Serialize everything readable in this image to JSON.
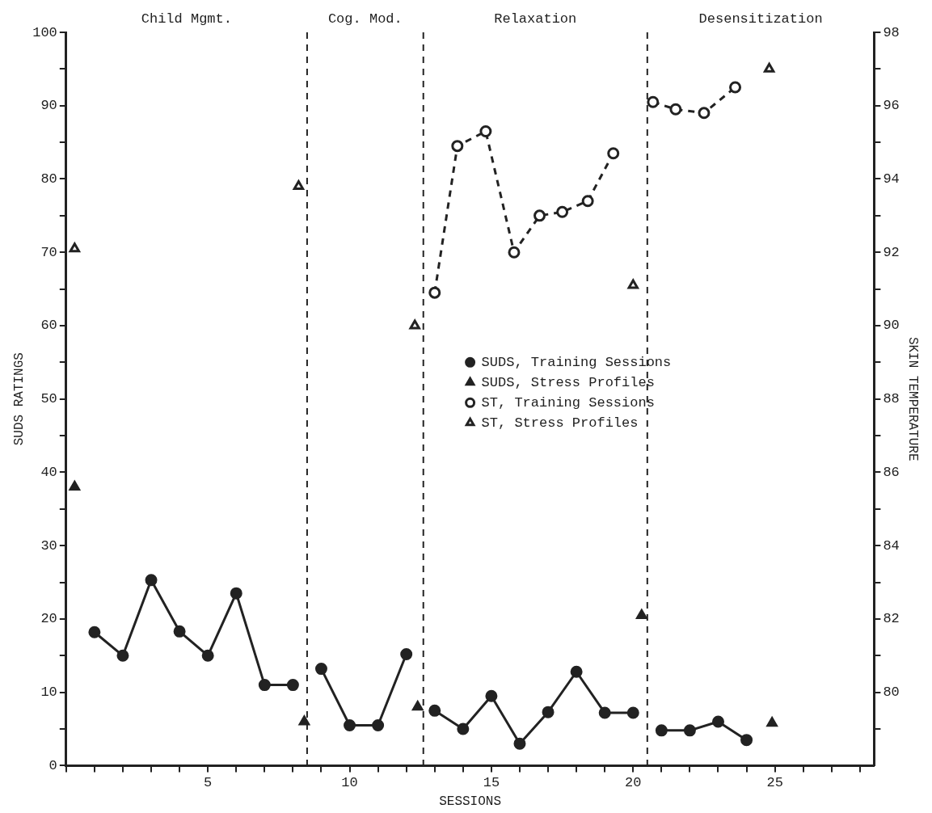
{
  "chart_data": {
    "type": "line",
    "xlabel": "SESSIONS",
    "ylabel": "SUDS RATINGS",
    "y2label": "SKIN TEMPERATURE",
    "xlim": [
      0,
      28.5
    ],
    "xticks": [
      {
        "value": 0,
        "label": null
      },
      {
        "value": 1,
        "label": null
      },
      {
        "value": 2,
        "label": null
      },
      {
        "value": 3,
        "label": null
      },
      {
        "value": 4,
        "label": null
      },
      5,
      {
        "value": 6,
        "label": null
      },
      {
        "value": 7,
        "label": null
      },
      {
        "value": 8,
        "label": null
      },
      {
        "value": 9,
        "label": null
      },
      10,
      {
        "value": 11,
        "label": null
      },
      {
        "value": 12,
        "label": null
      },
      {
        "value": 13,
        "label": null
      },
      {
        "value": 14,
        "label": null
      },
      15,
      {
        "value": 16,
        "label": null
      },
      {
        "value": 17,
        "label": null
      },
      {
        "value": 18,
        "label": null
      },
      {
        "value": 19,
        "label": null
      },
      20,
      {
        "value": 21,
        "label": null
      },
      {
        "value": 22,
        "label": null
      },
      {
        "value": 23,
        "label": null
      },
      {
        "value": 24,
        "label": null
      },
      25,
      {
        "value": 26,
        "label": null
      },
      {
        "value": 27,
        "label": null
      },
      {
        "value": 28,
        "label": null
      }
    ],
    "ylim": [
      0,
      100
    ],
    "yticks": [
      0,
      {
        "value": 5,
        "label": null
      },
      10,
      {
        "value": 15,
        "label": null
      },
      20,
      {
        "value": 25,
        "label": null
      },
      30,
      {
        "value": 35,
        "label": null
      },
      40,
      {
        "value": 45,
        "label": null
      },
      50,
      {
        "value": 55,
        "label": null
      },
      60,
      {
        "value": 65,
        "label": null
      },
      70,
      {
        "value": 75,
        "label": null
      },
      80,
      {
        "value": 85,
        "label": null
      },
      90,
      {
        "value": 95,
        "label": null
      },
      100
    ],
    "y2lim": [
      78,
      98
    ],
    "y2ticks": [
      {
        "value": 79,
        "label": null
      },
      80,
      {
        "value": 81,
        "label": null
      },
      82,
      {
        "value": 83,
        "label": null
      },
      84,
      {
        "value": 85,
        "label": null
      },
      86,
      {
        "value": 87,
        "label": null
      },
      88,
      {
        "value": 89,
        "label": null
      },
      90,
      {
        "value": 91,
        "label": null
      },
      92,
      {
        "value": 93,
        "label": null
      },
      94,
      {
        "value": 95,
        "label": null
      },
      96,
      {
        "value": 97,
        "label": null
      },
      98
    ],
    "legend": "right",
    "series": [
      {
        "name": "SUDS, Training Sessions",
        "marker": "circle",
        "line_style": "solid",
        "color": "#222222",
        "x": [
          1,
          2,
          3,
          4,
          5,
          6,
          7,
          8,
          8.5,
          9,
          10,
          11,
          12,
          12.5,
          13,
          14,
          15,
          16,
          17,
          18,
          19,
          20,
          20.5,
          21,
          22,
          23,
          24
        ],
        "values": [
          18.2,
          15,
          25.3,
          18.3,
          15,
          23.5,
          11,
          11,
          null,
          13.2,
          5.5,
          5.5,
          15.2,
          null,
          7.5,
          5,
          9.5,
          3,
          7.3,
          12.8,
          7.2,
          7.2,
          null,
          4.8,
          4.8,
          6,
          3.5
        ]
      },
      {
        "name": "SUDS, Stress Profiles",
        "type": "scatter",
        "marker": "triangle",
        "color": "#222222",
        "x": [
          0.3,
          8.4,
          12.4,
          20.3,
          24.9
        ],
        "values": [
          38,
          6,
          8,
          20.5,
          5.8
        ]
      },
      {
        "name": "ST, Training Sessions",
        "marker": "circle",
        "line_style": "dashed",
        "axis": "y2",
        "color": "#222222",
        "x": [
          13,
          13.8,
          14.8,
          15.8,
          16.7,
          17.5,
          18.4,
          19.3,
          20,
          20.7,
          21.5,
          22.5,
          23.6
        ],
        "values": [
          90.9,
          94.9,
          95.3,
          92,
          93,
          93.1,
          93.4,
          94.7,
          null,
          96.1,
          95.9,
          95.8,
          96.5
        ]
      },
      {
        "name": "ST, Stress Profiles",
        "type": "scatter",
        "marker": "triangle",
        "axis": "y2",
        "color": "#222222",
        "x": [
          0.3,
          8.2,
          12.3,
          20,
          24.8
        ],
        "values": [
          92.1,
          93.8,
          90,
          91.1,
          97
        ]
      }
    ],
    "ref_lines": [
      {
        "axis": "x",
        "value": 8.5,
        "line_style": "dashed",
        "color": "#222222"
      },
      {
        "axis": "x",
        "value": 12.6,
        "line_style": "dashed",
        "color": "#222222"
      },
      {
        "axis": "x",
        "value": 20.5,
        "line_style": "dashed",
        "color": "#222222"
      }
    ],
    "annotations": [
      "Child Mgmt.",
      "Cog. Mod.",
      "Relaxation",
      "Desensitization"
    ]
  }
}
